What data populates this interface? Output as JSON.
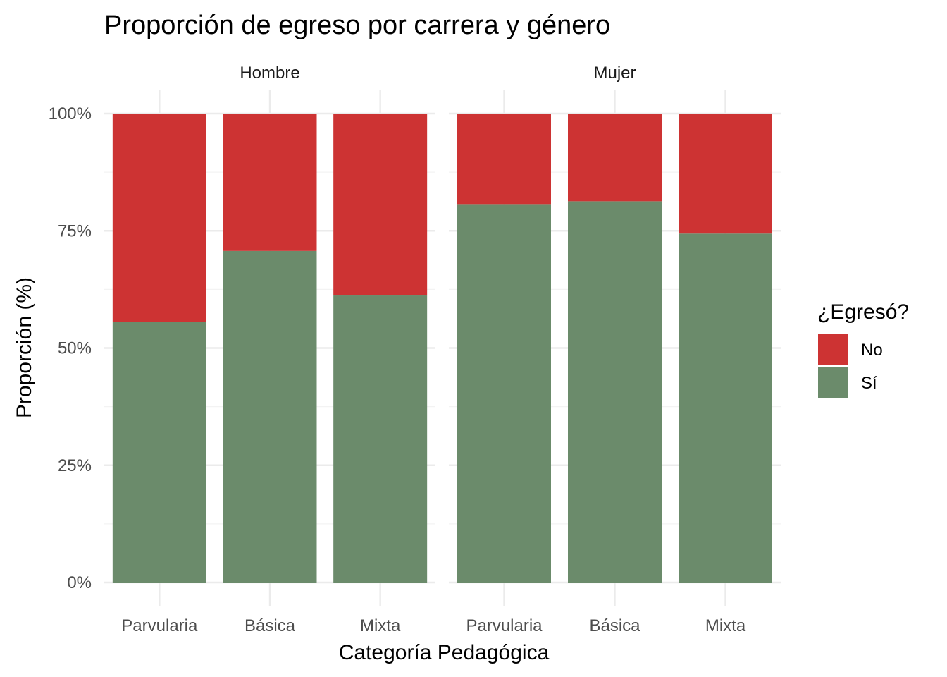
{
  "chart_data": {
    "type": "bar",
    "stacked": true,
    "title": "Proporción de egreso por carrera y género",
    "xlabel": "Categoría Pedagógica",
    "ylabel": "Proporción (%)",
    "ylim": [
      0,
      1
    ],
    "y_ticks": [
      "0%",
      "25%",
      "50%",
      "75%",
      "100%"
    ],
    "grid": true,
    "legend": {
      "title": "¿Egresó?",
      "position": "right",
      "entries": [
        {
          "name": "No",
          "color": "#CD3333"
        },
        {
          "name": "Sí",
          "color": "#6B8B6B"
        }
      ]
    },
    "categories": [
      "Parvularia",
      "Básica",
      "Mixta"
    ],
    "facets": [
      {
        "label": "Hombre",
        "series": [
          {
            "name": "Sí",
            "values": [
              0.555,
              0.707,
              0.612
            ]
          },
          {
            "name": "No",
            "values": [
              0.445,
              0.293,
              0.388
            ]
          }
        ]
      },
      {
        "label": "Mujer",
        "series": [
          {
            "name": "Sí",
            "values": [
              0.807,
              0.813,
              0.744
            ]
          },
          {
            "name": "No",
            "values": [
              0.193,
              0.187,
              0.256
            ]
          }
        ]
      }
    ]
  }
}
